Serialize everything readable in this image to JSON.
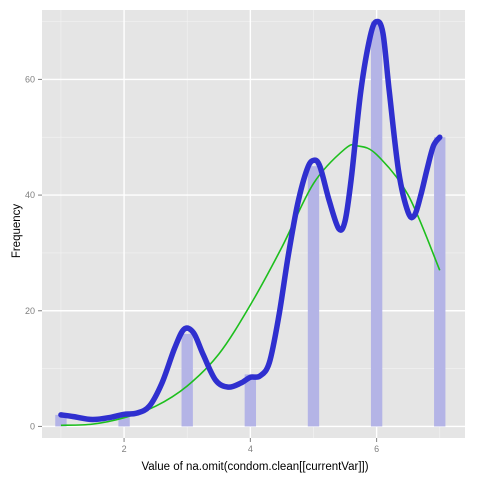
{
  "chart_data": {
    "type": "bar",
    "title": "",
    "xlabel": "Value of na.omit(condom.clean[[currentVar]])",
    "ylabel": "Frequency",
    "xlim": [
      0.7,
      7.4
    ],
    "ylim": [
      -2,
      72
    ],
    "x_ticks": [
      2,
      4,
      6
    ],
    "y_ticks": [
      0,
      20,
      40,
      60
    ],
    "grid": true,
    "legend": "none",
    "colors": {
      "panel": "#e5e5e5",
      "grid_major": "#ffffff",
      "grid_minor": "#f2f2f2",
      "bars": "#b4b4e6",
      "density_line": "#2f2fcf",
      "normal_curve": "#1dbf1d"
    },
    "bars": {
      "x": [
        1,
        2,
        3,
        4,
        5,
        6,
        7
      ],
      "values": [
        2,
        2,
        16,
        9,
        45,
        70,
        50
      ],
      "width": 0.18
    },
    "series": [
      {
        "kind": "smoothed-density",
        "x": [
          1.0,
          1.2,
          1.5,
          1.8,
          2.0,
          2.2,
          2.4,
          2.6,
          2.8,
          2.95,
          3.1,
          3.25,
          3.45,
          3.65,
          3.85,
          4.0,
          4.15,
          4.3,
          4.45,
          4.6,
          4.75,
          4.9,
          5.0,
          5.1,
          5.25,
          5.4,
          5.5,
          5.6,
          5.75,
          5.9,
          6.0,
          6.1,
          6.2,
          6.35,
          6.5,
          6.6,
          6.7,
          6.8,
          6.9,
          7.0
        ],
        "values": [
          2,
          1.7,
          1.2,
          1.6,
          2.1,
          2.3,
          3.5,
          7.5,
          13.5,
          16.8,
          16.2,
          12.5,
          8.0,
          6.8,
          7.5,
          8.5,
          8.7,
          11.0,
          19.0,
          29.5,
          38.5,
          44.5,
          46.0,
          45.0,
          39.0,
          34.2,
          35.5,
          43.0,
          58.0,
          67.5,
          70.0,
          68.0,
          58.0,
          44.0,
          37.0,
          36.5,
          40.0,
          44.5,
          48.5,
          50.0
        ]
      },
      {
        "kind": "normal-curve",
        "x": [
          1.0,
          1.5,
          2.0,
          2.5,
          3.0,
          3.5,
          4.0,
          4.5,
          5.0,
          5.5,
          5.7,
          6.0,
          6.5,
          7.0
        ],
        "values": [
          0.2,
          0.4,
          1.5,
          3.5,
          7.0,
          12.5,
          21.0,
          31.0,
          42.0,
          48.0,
          48.5,
          47.0,
          40.0,
          27.0
        ]
      }
    ]
  }
}
